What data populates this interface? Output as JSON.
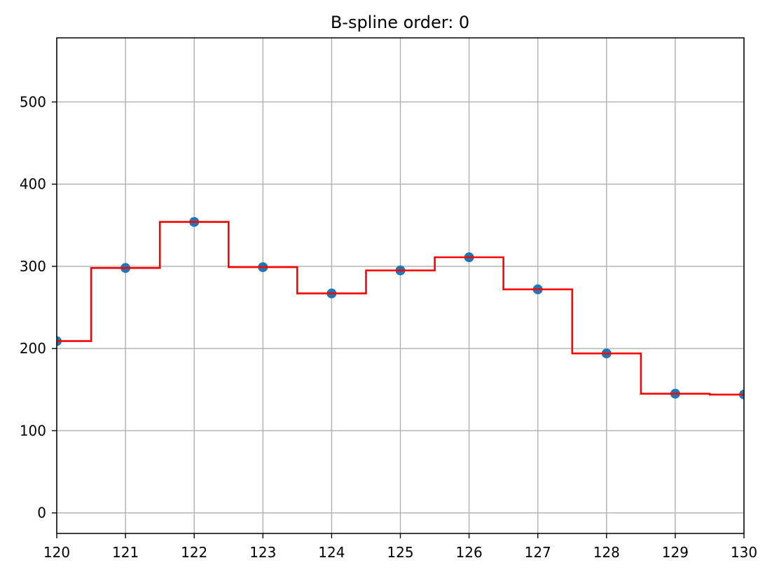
{
  "chart_data": {
    "type": "line",
    "title": "B-spline order: 0",
    "xlabel": "",
    "ylabel": "",
    "xlim": [
      120,
      130
    ],
    "ylim": [
      -25,
      578
    ],
    "grid": true,
    "x_ticks": [
      "120",
      "121",
      "122",
      "123",
      "124",
      "125",
      "126",
      "127",
      "128",
      "129",
      "130"
    ],
    "y_ticks": [
      "0",
      "100",
      "200",
      "300",
      "400",
      "500"
    ],
    "series": [
      {
        "kind": "scatter",
        "color": "#1f77b4",
        "x": [
          120,
          121,
          122,
          123,
          124,
          125,
          126,
          127,
          128,
          129,
          130
        ],
        "y": [
          209,
          298,
          354,
          299,
          267,
          295,
          311,
          272,
          194,
          145,
          144
        ]
      },
      {
        "kind": "step",
        "color": "#ff0000",
        "x": [
          120,
          120.5,
          120.5,
          121.5,
          121.5,
          122.5,
          122.5,
          123.5,
          123.5,
          124.5,
          124.5,
          125.5,
          125.5,
          126.5,
          126.5,
          127.5,
          127.5,
          128.5,
          128.5,
          129.5,
          129.5,
          130
        ],
        "y": [
          209,
          209,
          298,
          298,
          354,
          354,
          299,
          299,
          267,
          267,
          295,
          295,
          311,
          311,
          272,
          272,
          194,
          194,
          145,
          145,
          144,
          144
        ]
      }
    ]
  }
}
